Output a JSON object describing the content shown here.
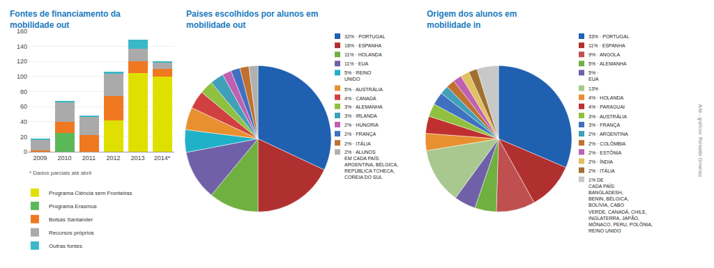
{
  "chart_data": [
    {
      "type": "bar",
      "title": "Fontes de financiamento da\nmobilidade out",
      "stacked": true,
      "categories": [
        "2009",
        "2010",
        "2011",
        "2012",
        "2013",
        "2014*"
      ],
      "series": [
        {
          "name": "Programa Ciência sem Fronteiras",
          "color": "#e0e000",
          "values": [
            0,
            0,
            0,
            42,
            105,
            100
          ]
        },
        {
          "name": "Programa Erasmus",
          "color": "#5ab858",
          "values": [
            0,
            25,
            0,
            0,
            0,
            0
          ]
        },
        {
          "name": "Bolsas Santander",
          "color": "#f07820",
          "values": [
            2,
            15,
            22,
            32,
            15,
            10
          ]
        },
        {
          "name": "Recursos próprios",
          "color": "#aaaaaa",
          "values": [
            14,
            26,
            24,
            30,
            17,
            8
          ]
        },
        {
          "name": "Outras fontes",
          "color": "#3ab8c8",
          "values": [
            2,
            2,
            2,
            2,
            12,
            2
          ]
        }
      ],
      "ylim": [
        0,
        160
      ],
      "yticks": [
        0,
        20,
        40,
        60,
        80,
        100,
        120,
        140,
        160
      ],
      "grid": true,
      "legend": "bottom",
      "annotations": [
        "* Dados parciais até abril"
      ]
    },
    {
      "type": "pie",
      "title": "Países escolhidos por alunos em\nmobilidade out",
      "categories": [
        "32% · PORTUGAL",
        "18% · ESPANHA",
        "11% · HOLANDA",
        "11% · EUA",
        "5% · REINO\nUNIDO",
        "5% · AUSTRÁLIA",
        "4% · CANADÁ",
        "3% · ALEMANHA",
        "3% · IRLANDA",
        "2% · HUNGRIA",
        "2% · FRANÇA",
        "2% · ITÁLIA",
        "2% · ALUNOS\nEM CADA PAÍS:\nARGENTINA, BÉLGICA,\nREPÚBLICA TCHECA,\nCOREIA DO SUL"
      ],
      "values": [
        32,
        18,
        11,
        11,
        5,
        5,
        4,
        3,
        3,
        2,
        2,
        2,
        2
      ],
      "colors": [
        "#2060b0",
        "#b03030",
        "#70b040",
        "#7060a8",
        "#20b0c8",
        "#e89030",
        "#d04040",
        "#90c040",
        "#40a0b8",
        "#c060b0",
        "#4070c0",
        "#c07030",
        "#b0b0b0"
      ]
    },
    {
      "type": "pie",
      "title": "Origem dos alunos em\nmobilidade in",
      "categories": [
        "33% · PORTUGAL",
        "11% · ESPANHA",
        "9% · ANGOLA",
        "5% · ALEMANHA",
        "5% ·\nEUA",
        "13%",
        "4% · HOLANDA",
        "4% · PARAGUAI",
        "3% · AUSTRÁLIA",
        "3% · FRANÇA",
        "2% · ARGENTINA",
        "2% · COLÔMBIA",
        "2% · ESTÔNIA",
        "2% · ÍNDIA",
        "2% · ITÁLIA",
        "1% DE\nCADA PAÍS:\nBANGLADESH,\nBENIN, BÉLGICA,\nBOLÍVIA, CABO\nVERDE, CANADÁ, CHILE,\nINGLATERRA, JAPÃO,\nMÔNACO, PERU, POLÔNIA,\nREINO UNIDO"
      ],
      "values": [
        33,
        11,
        9,
        5,
        5,
        13,
        4,
        4,
        3,
        3,
        2,
        2,
        2,
        2,
        2,
        5
      ],
      "colors": [
        "#2060b0",
        "#b03030",
        "#c05050",
        "#70b040",
        "#7060a8",
        "#a8c890",
        "#e89030",
        "#c03030",
        "#90c040",
        "#4070c0",
        "#40a0b8",
        "#c07030",
        "#c060b0",
        "#e0c060",
        "#a07030",
        "#c8c8c8"
      ],
      "annotations": [
        "Arte - gráficos: Reinaldo Gimenez"
      ]
    }
  ]
}
